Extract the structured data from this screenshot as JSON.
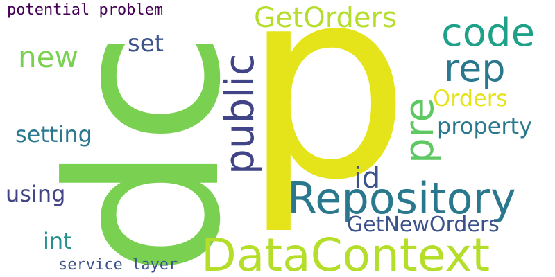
{
  "colors": {
    "green": "#7ad151",
    "yellow": "#e5e41a",
    "lime": "#b5de2b",
    "teal": "#21918c",
    "blue_teal": "#2a788e",
    "indigo": "#414487",
    "purple": "#440154",
    "light_green": "#5ec962",
    "dark_blue": "#3b528b",
    "cyan_green": "#1fa088"
  },
  "words": {
    "dc": "dc",
    "p": "p",
    "public": "public",
    "pre": "pre",
    "potential_problem": "potential problem",
    "get_orders": "GetOrders",
    "code": "code",
    "rep": "rep",
    "new": "new",
    "set": "set",
    "orders": "Orders",
    "property": "property",
    "setting": "setting",
    "id": "id",
    "repository": "Repository",
    "using": "using",
    "get_new_orders": "GetNewOrders",
    "int": "int",
    "data_context": "DataContext",
    "service_layer": "service layer"
  }
}
